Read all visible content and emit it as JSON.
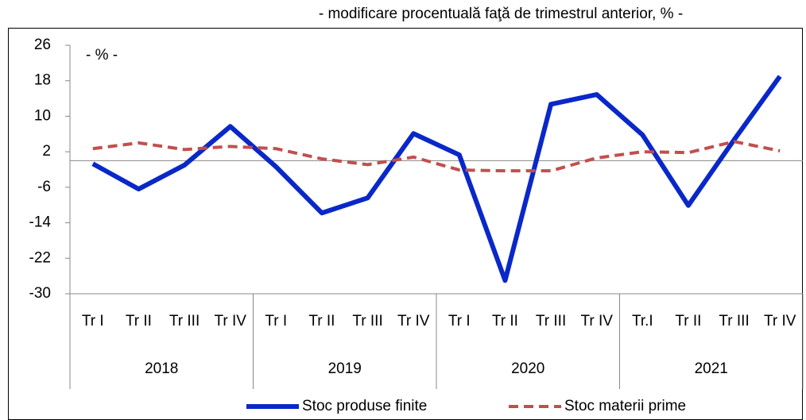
{
  "chart_data": {
    "type": "line",
    "subtitle": "- modificare procentuală faţă de trimestrul anterior, %  -",
    "unit_label": "- % -",
    "categories": [
      "Tr I",
      "Tr II",
      "Tr III",
      "Tr IV",
      "Tr I",
      "Tr II",
      "Tr III",
      "Tr IV",
      "Tr I",
      "Tr II",
      "Tr III",
      "Tr IV",
      "Tr.I",
      "Tr II",
      "Tr III",
      "Tr IV"
    ],
    "groups": [
      "2018",
      "2019",
      "2020",
      "2021"
    ],
    "series": [
      {
        "name": "Stoc produse finite",
        "color": "#0a28c8",
        "dash": false,
        "values": [
          -0.7,
          -6.4,
          -1,
          7.7,
          -1.4,
          -11.8,
          -8.4,
          6.1,
          1.3,
          -27,
          12.7,
          14.9,
          5.8,
          -10.1,
          4.7,
          19
        ]
      },
      {
        "name": "Stoc materii prime",
        "color": "#c0504d",
        "dash": true,
        "values": [
          2.7,
          4,
          2.5,
          3.2,
          2.7,
          0.4,
          -0.9,
          0.8,
          -2.1,
          -2.3,
          -2.3,
          0.6,
          2,
          1.8,
          4.3,
          2.2
        ]
      }
    ],
    "ylim": [
      -30,
      26
    ],
    "yticks": [
      26,
      18,
      10,
      2,
      -6,
      -14,
      -22,
      -30
    ],
    "legend": "bottom"
  }
}
